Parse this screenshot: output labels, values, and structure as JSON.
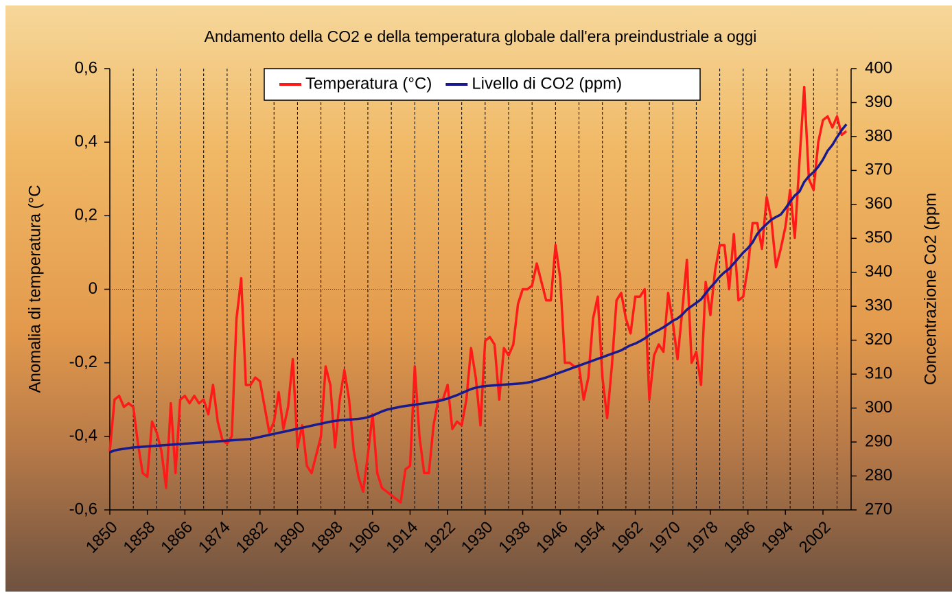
{
  "chart_data": {
    "type": "line",
    "title": "Andamento della CO2 e della temperatura globale dall'era preindustriale a oggi",
    "y_label": "Anomalia di temperatura (°C",
    "y2_label": "Concentrazione Co2 (ppm",
    "x": [
      1850,
      1851,
      1852,
      1853,
      1854,
      1855,
      1856,
      1857,
      1858,
      1859,
      1860,
      1861,
      1862,
      1863,
      1864,
      1865,
      1866,
      1867,
      1868,
      1869,
      1870,
      1871,
      1872,
      1873,
      1874,
      1875,
      1876,
      1877,
      1878,
      1879,
      1880,
      1881,
      1882,
      1883,
      1884,
      1885,
      1886,
      1887,
      1888,
      1889,
      1890,
      1891,
      1892,
      1893,
      1894,
      1895,
      1896,
      1897,
      1898,
      1899,
      1900,
      1901,
      1902,
      1903,
      1904,
      1905,
      1906,
      1907,
      1908,
      1909,
      1910,
      1911,
      1912,
      1913,
      1914,
      1915,
      1916,
      1917,
      1918,
      1919,
      1920,
      1921,
      1922,
      1923,
      1924,
      1925,
      1926,
      1927,
      1928,
      1929,
      1930,
      1931,
      1932,
      1933,
      1934,
      1935,
      1936,
      1937,
      1938,
      1939,
      1940,
      1941,
      1942,
      1943,
      1944,
      1945,
      1946,
      1947,
      1948,
      1949,
      1950,
      1951,
      1952,
      1953,
      1954,
      1955,
      1956,
      1957,
      1958,
      1959,
      1960,
      1961,
      1962,
      1963,
      1964,
      1965,
      1966,
      1967,
      1968,
      1969,
      1970,
      1971,
      1972,
      1973,
      1974,
      1975,
      1976,
      1977,
      1978,
      1979,
      1980,
      1981,
      1982,
      1983,
      1984,
      1985,
      1986,
      1987,
      1988,
      1989,
      1990,
      1991,
      1992,
      1993,
      1994,
      1995,
      1996,
      1997,
      1998,
      1999,
      2000,
      2001,
      2002,
      2003,
      2004,
      2005,
      2006,
      2007
    ],
    "series": [
      {
        "name": "Temperatura (°C)",
        "color": "#ff1a1a",
        "axis": "y",
        "values": [
          -0.44,
          -0.3,
          -0.29,
          -0.32,
          -0.31,
          -0.32,
          -0.42,
          -0.5,
          -0.51,
          -0.36,
          -0.39,
          -0.44,
          -0.54,
          -0.31,
          -0.5,
          -0.3,
          -0.29,
          -0.31,
          -0.29,
          -0.31,
          -0.3,
          -0.34,
          -0.26,
          -0.36,
          -0.41,
          -0.42,
          -0.4,
          -0.08,
          0.03,
          -0.26,
          -0.26,
          -0.24,
          -0.25,
          -0.32,
          -0.39,
          -0.36,
          -0.28,
          -0.38,
          -0.32,
          -0.19,
          -0.43,
          -0.37,
          -0.48,
          -0.5,
          -0.45,
          -0.4,
          -0.21,
          -0.26,
          -0.43,
          -0.3,
          -0.22,
          -0.3,
          -0.44,
          -0.51,
          -0.55,
          -0.45,
          -0.34,
          -0.5,
          -0.54,
          -0.55,
          -0.56,
          -0.57,
          -0.58,
          -0.49,
          -0.48,
          -0.21,
          -0.4,
          -0.5,
          -0.5,
          -0.37,
          -0.3,
          -0.3,
          -0.26,
          -0.38,
          -0.36,
          -0.37,
          -0.3,
          -0.16,
          -0.24,
          -0.37,
          -0.14,
          -0.13,
          -0.15,
          -0.3,
          -0.16,
          -0.18,
          -0.15,
          -0.04,
          0.0,
          0.0,
          0.01,
          0.07,
          0.02,
          -0.03,
          -0.03,
          0.12,
          0.03,
          -0.2,
          -0.2,
          -0.21,
          -0.21,
          -0.3,
          -0.24,
          -0.08,
          -0.02,
          -0.24,
          -0.35,
          -0.21,
          -0.03,
          -0.01,
          -0.08,
          -0.12,
          -0.02,
          -0.02,
          0.0,
          -0.3,
          -0.18,
          -0.15,
          -0.17,
          -0.01,
          -0.09,
          -0.19,
          -0.06,
          0.08,
          -0.2,
          -0.17,
          -0.26,
          0.02,
          -0.07,
          0.05,
          0.12,
          0.12,
          0.0,
          0.15,
          -0.03,
          -0.02,
          0.06,
          0.18,
          0.18,
          0.11,
          0.25,
          0.19,
          0.06,
          0.11,
          0.17,
          0.27,
          0.14,
          0.35,
          0.55,
          0.3,
          0.27,
          0.4,
          0.46,
          0.47,
          0.44,
          0.47,
          0.42,
          0.43
        ]
      },
      {
        "name": "Livello di CO2 (ppm)",
        "color": "#1a1a8c",
        "axis": "y2",
        "values": [
          287.0,
          287.5,
          287.8,
          288.0,
          288.2,
          288.4,
          288.5,
          288.6,
          288.7,
          288.8,
          288.9,
          289.0,
          289.1,
          289.2,
          289.3,
          289.4,
          289.5,
          289.6,
          289.7,
          289.8,
          289.9,
          290.0,
          290.1,
          290.2,
          290.3,
          290.4,
          290.5,
          290.6,
          290.7,
          290.8,
          290.9,
          291.2,
          291.5,
          291.8,
          292.1,
          292.4,
          292.7,
          293.0,
          293.3,
          293.6,
          293.9,
          294.2,
          294.5,
          294.8,
          295.1,
          295.4,
          295.7,
          296.0,
          296.2,
          296.4,
          296.5,
          296.6,
          296.7,
          296.8,
          297.0,
          297.3,
          297.8,
          298.4,
          299.0,
          299.5,
          299.8,
          300.1,
          300.4,
          300.6,
          300.8,
          301.0,
          301.2,
          301.4,
          301.6,
          301.8,
          302.0,
          302.4,
          302.8,
          303.3,
          303.8,
          304.4,
          305.0,
          305.6,
          306.0,
          306.3,
          306.5,
          306.6,
          306.7,
          306.8,
          306.9,
          307.0,
          307.1,
          307.2,
          307.3,
          307.5,
          307.8,
          308.2,
          308.6,
          309.0,
          309.5,
          310.0,
          310.5,
          311.0,
          311.5,
          312.0,
          312.5,
          313.0,
          313.5,
          314.0,
          314.5,
          315.0,
          315.5,
          316.0,
          316.5,
          317.0,
          317.8,
          318.5,
          319.0,
          319.7,
          320.5,
          321.5,
          322.3,
          323.0,
          323.8,
          324.7,
          325.7,
          326.4,
          327.5,
          329.0,
          330.0,
          331.0,
          332.0,
          333.8,
          335.5,
          337.0,
          338.7,
          340.0,
          341.0,
          342.6,
          344.2,
          345.8,
          347.1,
          348.8,
          351.3,
          352.9,
          354.2,
          355.5,
          356.3,
          357.0,
          358.8,
          360.8,
          362.6,
          363.8,
          366.6,
          368.3,
          369.5,
          371.1,
          373.2,
          375.8,
          377.5,
          379.8,
          381.9,
          383.6
        ]
      }
    ],
    "xlim": [
      1850,
      2008
    ],
    "xticks": [
      1850,
      1858,
      1866,
      1874,
      1882,
      1890,
      1898,
      1906,
      1914,
      1922,
      1930,
      1938,
      1946,
      1954,
      1962,
      1970,
      1978,
      1986,
      1994,
      2002
    ],
    "x_gridlines": [
      1855,
      1860,
      1865,
      1870,
      1875,
      1880,
      1885,
      1890,
      1895,
      1900,
      1905,
      1910,
      1915,
      1920,
      1925,
      1930,
      1935,
      1940,
      1945,
      1950,
      1955,
      1960,
      1965,
      1970,
      1975,
      1980,
      1985,
      1990,
      1995,
      2000,
      2005
    ],
    "ylim": [
      -0.6,
      0.6
    ],
    "yticks": [
      {
        "value": -0.6,
        "label": "-0,6"
      },
      {
        "value": -0.4,
        "label": "-0,4"
      },
      {
        "value": -0.2,
        "label": "-0,2"
      },
      0,
      {
        "value": 0.2,
        "label": "0,2"
      },
      {
        "value": 0.4,
        "label": "0,4"
      },
      {
        "value": 0.6,
        "label": "0,6"
      }
    ],
    "zero_line": true,
    "y2lim": [
      270,
      400
    ],
    "y2ticks": [
      270,
      280,
      290,
      300,
      310,
      320,
      330,
      340,
      350,
      360,
      370,
      380,
      390,
      400
    ],
    "legend": "top"
  }
}
